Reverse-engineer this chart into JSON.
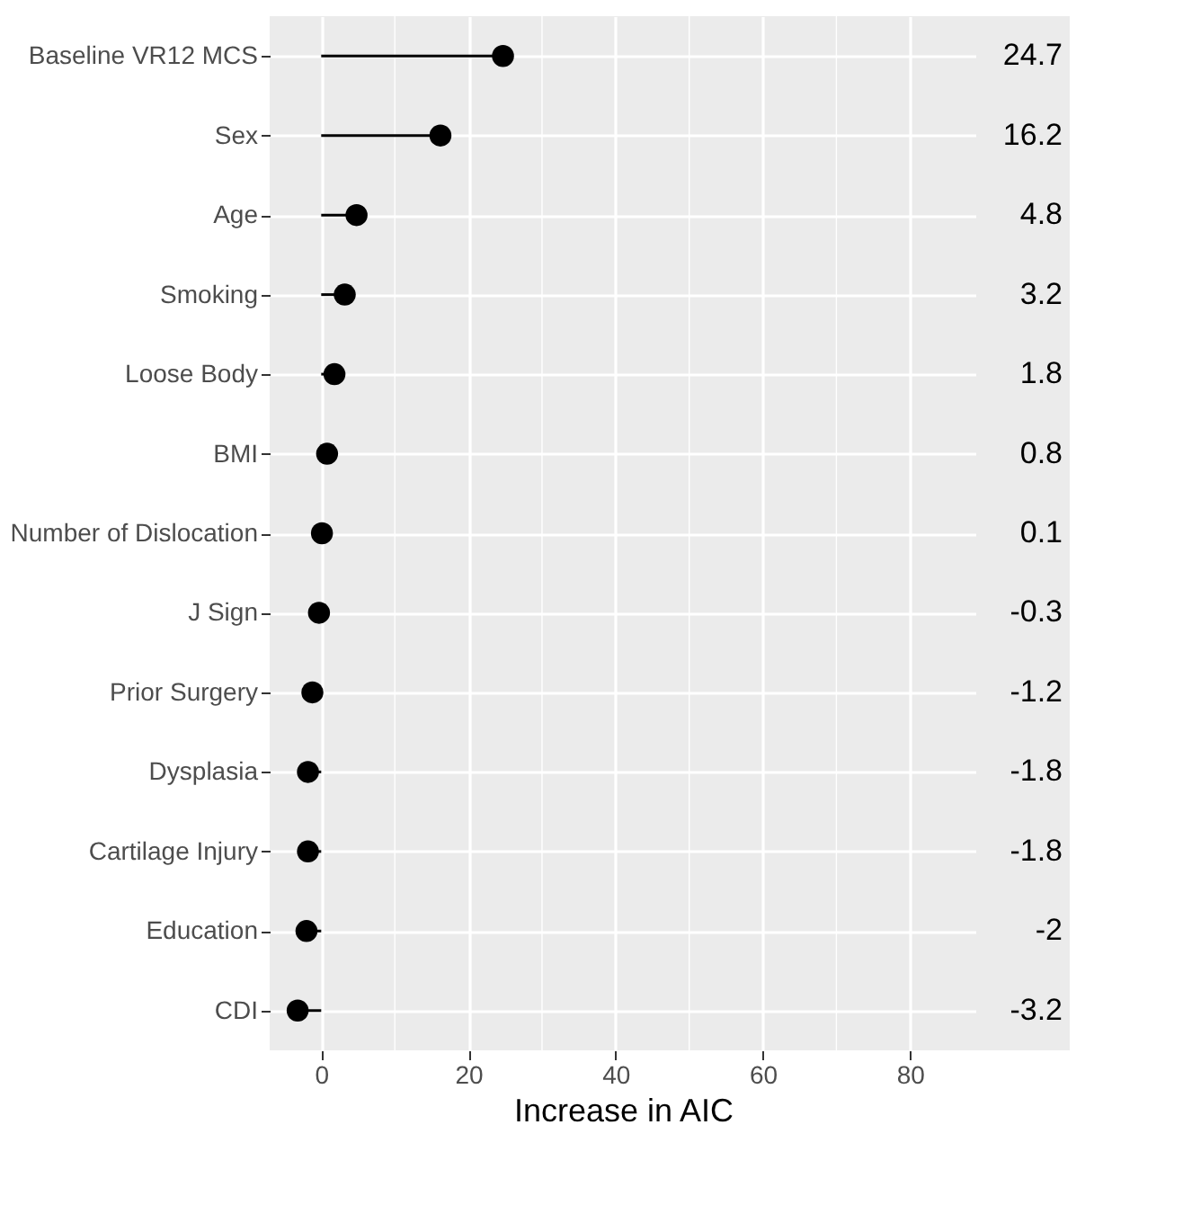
{
  "chart_data": {
    "type": "lollipop",
    "orientation": "horizontal",
    "xlabel": "Increase in AIC",
    "categories": [
      "Baseline VR12 MCS",
      "Sex",
      "Age",
      "Smoking",
      "Loose Body",
      "BMI",
      "Number of Dislocation",
      "J Sign",
      "Prior Surgery",
      "Dysplasia",
      "Cartilage Injury",
      "Education",
      "CDI"
    ],
    "values": [
      24.7,
      16.2,
      4.8,
      3.2,
      1.8,
      0.8,
      0.1,
      -0.3,
      -1.2,
      -1.8,
      -1.8,
      -2,
      -3.2
    ],
    "color": "#000000",
    "data_labels": true,
    "xlim": [
      -7,
      89
    ],
    "xticks": [
      0,
      20,
      40,
      60,
      80
    ],
    "grid": true
  }
}
